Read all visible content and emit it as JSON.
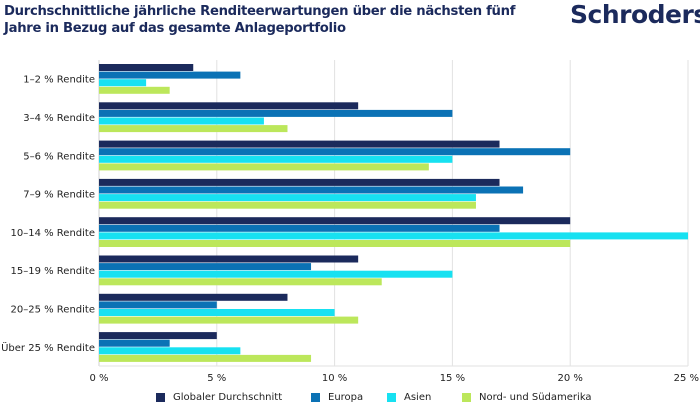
{
  "header": {
    "title": "Durchschnittliche jährliche Renditeerwartungen über die nächsten fünf Jahre in Bezug auf das gesamte Anlageportfolio",
    "logo_text": "Schroders"
  },
  "chart_data": {
    "type": "bar",
    "orientation": "horizontal",
    "title": "Durchschnittliche jährliche Renditeerwartungen über die nächsten fünf Jahre in Bezug auf das gesamte Anlageportfolio",
    "xlabel": "",
    "ylabel": "",
    "xlim": [
      0,
      25
    ],
    "x_ticks": [
      0,
      5,
      10,
      15,
      20,
      25
    ],
    "x_tick_labels": [
      "0 %",
      "5 %",
      "10 %",
      "15 %",
      "20 %",
      "25 %"
    ],
    "grid": true,
    "legend_position": "bottom",
    "categories": [
      "1–2 % Rendite",
      "3–4 % Rendite",
      "5–6 % Rendite",
      "7–9 % Rendite",
      "10–14 % Rendite",
      "15–19 % Rendite",
      "20–25 % Rendite",
      "Über 25 % Rendite"
    ],
    "series": [
      {
        "name": "Globaler Durchschnitt",
        "color": "#1b2a5c",
        "values": [
          4,
          11,
          17,
          17,
          20,
          11,
          8,
          5
        ]
      },
      {
        "name": "Europa",
        "color": "#0b72b5",
        "values": [
          6,
          15,
          20,
          18,
          17,
          9,
          5,
          3
        ]
      },
      {
        "name": "Asien",
        "color": "#17e1f1",
        "values": [
          2,
          7,
          15,
          16,
          25,
          15,
          10,
          6
        ]
      },
      {
        "name": "Nord- und Südamerika",
        "color": "#bce75b",
        "values": [
          3,
          8,
          14,
          16,
          20,
          12,
          11,
          9
        ]
      }
    ]
  }
}
